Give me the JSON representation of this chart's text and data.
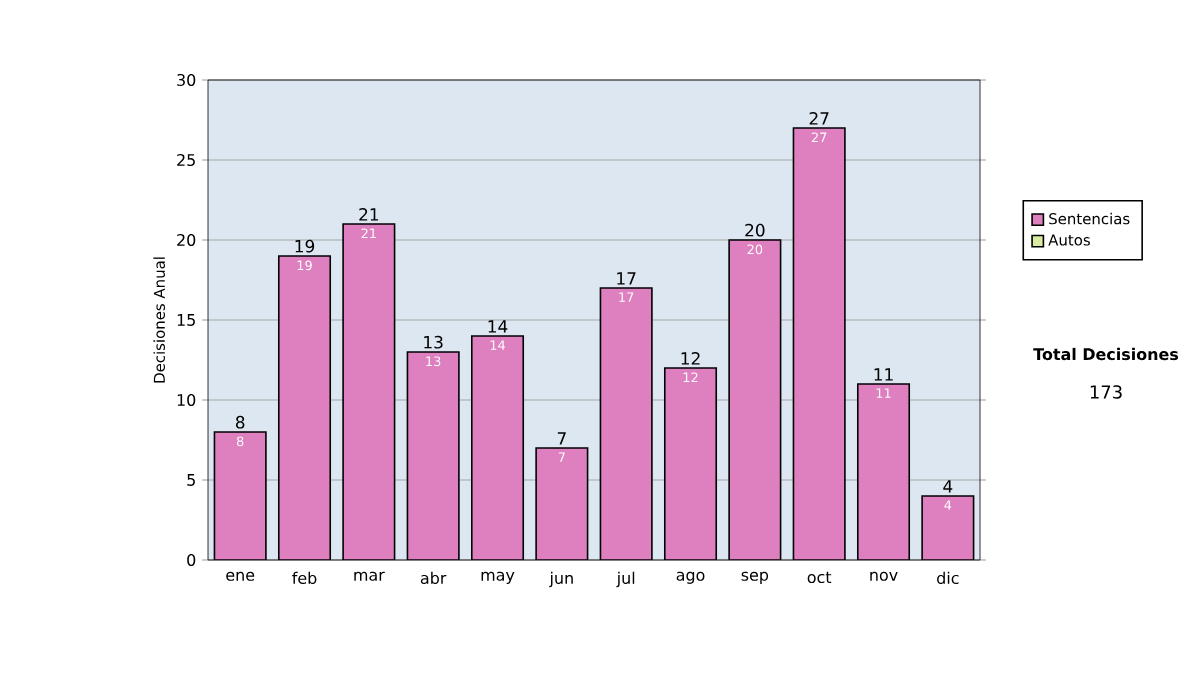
{
  "chart_data": {
    "type": "bar",
    "ylabel": "Decisiones Anual",
    "categories": [
      "ene",
      "feb",
      "mar",
      "abr",
      "may",
      "jun",
      "jul",
      "ago",
      "sep",
      "oct",
      "nov",
      "dic"
    ],
    "series": [
      {
        "name": "Sentencias",
        "color": "#de7fc0",
        "values": [
          8,
          19,
          21,
          13,
          14,
          7,
          17,
          12,
          20,
          27,
          11,
          4
        ]
      },
      {
        "name": "Autos",
        "color": "#d9ec9f",
        "values": [
          null,
          null,
          null,
          null,
          null,
          null,
          null,
          null,
          null,
          null,
          null,
          null
        ]
      }
    ],
    "totals": [
      "8",
      "19",
      "21",
      "13",
      "14",
      "7",
      "17",
      "12",
      "20",
      "27",
      "11",
      "4"
    ],
    "data_labels": true,
    "ylim": [
      0,
      30
    ],
    "yticks": [
      0,
      5,
      10,
      15,
      20,
      25,
      30
    ],
    "grid": "y",
    "legend": "right",
    "annotations": [
      "Total Decisiones",
      "173"
    ]
  }
}
